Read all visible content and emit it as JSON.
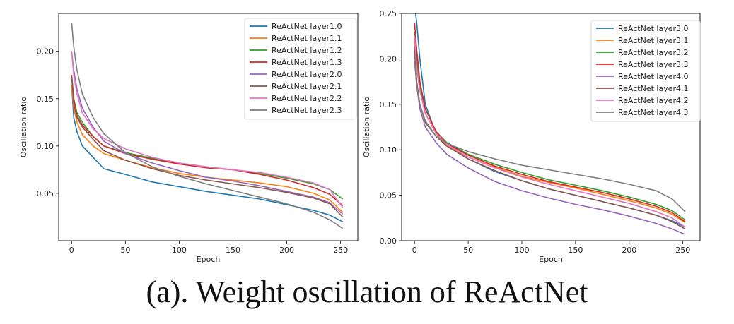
{
  "caption": "(a). Weight oscillation of ReActNet",
  "chart_data": [
    {
      "type": "line",
      "xlabel": "Epoch",
      "ylabel": "Oscillation ratio",
      "xlim": [
        -12,
        266
      ],
      "ylim": [
        0.0,
        0.24
      ],
      "xticks": [
        0,
        50,
        100,
        150,
        200,
        250
      ],
      "yticks": [
        0.05,
        0.1,
        0.15,
        0.2
      ],
      "ytick_labels": [
        "0.05",
        "0.10",
        "0.15",
        "0.20"
      ],
      "grid": false,
      "legend": "top-right",
      "x": [
        0,
        2,
        5,
        10,
        20,
        30,
        50,
        75,
        100,
        125,
        150,
        175,
        200,
        225,
        240,
        252
      ],
      "series": [
        {
          "name": "ReActNet layer1.0",
          "color": "#1f77b4",
          "values": [
            0.165,
            0.13,
            0.115,
            0.1,
            0.088,
            0.076,
            0.07,
            0.062,
            0.057,
            0.052,
            0.048,
            0.044,
            0.038,
            0.032,
            0.027,
            0.02
          ]
        },
        {
          "name": "ReActNet layer1.1",
          "color": "#ff7f0e",
          "values": [
            0.165,
            0.14,
            0.125,
            0.112,
            0.1,
            0.092,
            0.085,
            0.077,
            0.071,
            0.067,
            0.064,
            0.061,
            0.057,
            0.05,
            0.043,
            0.03
          ]
        },
        {
          "name": "ReActNet layer1.2",
          "color": "#2ca02c",
          "values": [
            0.175,
            0.15,
            0.135,
            0.125,
            0.11,
            0.1,
            0.093,
            0.087,
            0.082,
            0.078,
            0.075,
            0.071,
            0.066,
            0.06,
            0.054,
            0.044
          ]
        },
        {
          "name": "ReActNet layer1.3",
          "color": "#d62728",
          "values": [
            0.175,
            0.15,
            0.132,
            0.122,
            0.11,
            0.1,
            0.092,
            0.086,
            0.081,
            0.077,
            0.075,
            0.07,
            0.064,
            0.056,
            0.049,
            0.037
          ]
        },
        {
          "name": "ReActNet layer2.0",
          "color": "#9467bd",
          "values": [
            0.2,
            0.18,
            0.16,
            0.14,
            0.12,
            0.105,
            0.092,
            0.082,
            0.074,
            0.067,
            0.063,
            0.058,
            0.052,
            0.046,
            0.04,
            0.028
          ]
        },
        {
          "name": "ReActNet layer2.1",
          "color": "#8c564b",
          "values": [
            0.175,
            0.145,
            0.13,
            0.12,
            0.107,
            0.095,
            0.085,
            0.076,
            0.069,
            0.064,
            0.06,
            0.056,
            0.051,
            0.045,
            0.039,
            0.025
          ]
        },
        {
          "name": "ReActNet layer2.2",
          "color": "#e377c2",
          "values": [
            0.2,
            0.175,
            0.155,
            0.135,
            0.118,
            0.108,
            0.097,
            0.088,
            0.082,
            0.078,
            0.075,
            0.072,
            0.067,
            0.061,
            0.054,
            0.035
          ]
        },
        {
          "name": "ReActNet layer2.3",
          "color": "#7f7f7f",
          "values": [
            0.23,
            0.205,
            0.18,
            0.155,
            0.13,
            0.113,
            0.093,
            0.078,
            0.068,
            0.06,
            0.053,
            0.046,
            0.039,
            0.03,
            0.022,
            0.013
          ]
        }
      ]
    },
    {
      "type": "line",
      "xlabel": "Epoch",
      "ylabel": "Oscillation ratio",
      "xlim": [
        -12,
        266
      ],
      "ylim": [
        0.0,
        0.25
      ],
      "xticks": [
        0,
        50,
        100,
        150,
        200,
        250
      ],
      "yticks": [
        0.0,
        0.05,
        0.1,
        0.15,
        0.2,
        0.25
      ],
      "ytick_labels": [
        "0.00",
        "0.05",
        "0.10",
        "0.15",
        "0.20",
        "0.25"
      ],
      "grid": false,
      "legend": "top-right",
      "x": [
        0,
        2,
        5,
        10,
        20,
        30,
        50,
        75,
        100,
        125,
        150,
        175,
        200,
        225,
        240,
        252
      ],
      "series": [
        {
          "name": "ReActNet layer3.0",
          "color": "#1f77b4",
          "values": [
            0.26,
            0.24,
            0.2,
            0.15,
            0.118,
            0.105,
            0.09,
            0.076,
            0.066,
            0.057,
            0.05,
            0.043,
            0.036,
            0.028,
            0.022,
            0.015
          ]
        },
        {
          "name": "ReActNet layer3.1",
          "color": "#ff7f0e",
          "values": [
            0.22,
            0.19,
            0.165,
            0.14,
            0.118,
            0.105,
            0.092,
            0.081,
            0.071,
            0.064,
            0.058,
            0.051,
            0.044,
            0.036,
            0.029,
            0.02
          ]
        },
        {
          "name": "ReActNet layer3.2",
          "color": "#2ca02c",
          "values": [
            0.23,
            0.2,
            0.17,
            0.145,
            0.12,
            0.108,
            0.095,
            0.084,
            0.075,
            0.067,
            0.061,
            0.055,
            0.048,
            0.04,
            0.033,
            0.023
          ]
        },
        {
          "name": "ReActNet layer3.3",
          "color": "#d62728",
          "values": [
            0.24,
            0.21,
            0.175,
            0.145,
            0.12,
            0.107,
            0.094,
            0.082,
            0.073,
            0.065,
            0.059,
            0.053,
            0.046,
            0.038,
            0.031,
            0.021
          ]
        },
        {
          "name": "ReActNet layer4.0",
          "color": "#9467bd",
          "values": [
            0.21,
            0.17,
            0.145,
            0.125,
            0.108,
            0.095,
            0.08,
            0.065,
            0.055,
            0.047,
            0.04,
            0.034,
            0.027,
            0.019,
            0.013,
            0.007
          ]
        },
        {
          "name": "ReActNet layer4.1",
          "color": "#8c564b",
          "values": [
            0.215,
            0.175,
            0.15,
            0.13,
            0.115,
            0.104,
            0.09,
            0.077,
            0.066,
            0.057,
            0.05,
            0.043,
            0.036,
            0.028,
            0.021,
            0.013
          ]
        },
        {
          "name": "ReActNet layer4.2",
          "color": "#e377c2",
          "values": [
            0.225,
            0.19,
            0.165,
            0.14,
            0.118,
            0.106,
            0.092,
            0.08,
            0.07,
            0.062,
            0.055,
            0.048,
            0.041,
            0.032,
            0.025,
            0.015
          ]
        },
        {
          "name": "ReActNet layer4.3",
          "color": "#7f7f7f",
          "values": [
            0.198,
            0.17,
            0.15,
            0.132,
            0.115,
            0.107,
            0.098,
            0.09,
            0.083,
            0.078,
            0.073,
            0.068,
            0.062,
            0.055,
            0.046,
            0.032
          ]
        }
      ]
    }
  ]
}
